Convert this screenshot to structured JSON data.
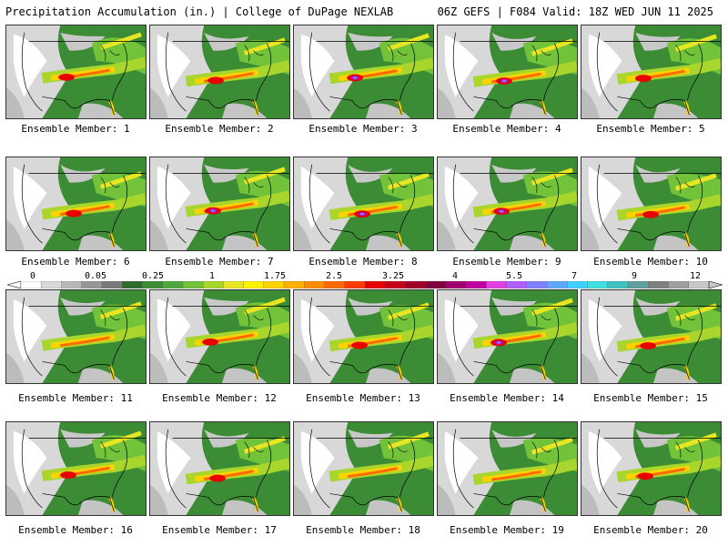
{
  "header": {
    "title": "Precipitation Accumulation (in.) | College of DuPage NEXLAB",
    "valid": "06Z GEFS | F084 Valid: 18Z WED JUN 11 2025"
  },
  "members": [
    {
      "label": "Ensemble Member: 1",
      "heavy": "medium"
    },
    {
      "label": "Ensemble Member: 2",
      "heavy": "medium"
    },
    {
      "label": "Ensemble Member: 3",
      "heavy": "high"
    },
    {
      "label": "Ensemble Member: 4",
      "heavy": "high"
    },
    {
      "label": "Ensemble Member: 5",
      "heavy": "medium"
    },
    {
      "label": "Ensemble Member: 6",
      "heavy": "medium"
    },
    {
      "label": "Ensemble Member: 7",
      "heavy": "high"
    },
    {
      "label": "Ensemble Member: 8",
      "heavy": "high"
    },
    {
      "label": "Ensemble Member: 9",
      "heavy": "high"
    },
    {
      "label": "Ensemble Member: 10",
      "heavy": "medium"
    },
    {
      "label": "Ensemble Member: 11",
      "heavy": "low"
    },
    {
      "label": "Ensemble Member: 12",
      "heavy": "medium"
    },
    {
      "label": "Ensemble Member: 13",
      "heavy": "medium"
    },
    {
      "label": "Ensemble Member: 14",
      "heavy": "high"
    },
    {
      "label": "Ensemble Member: 15",
      "heavy": "medium"
    },
    {
      "label": "Ensemble Member: 16",
      "heavy": "medium"
    },
    {
      "label": "Ensemble Member: 17",
      "heavy": "medium"
    },
    {
      "label": "Ensemble Member: 18",
      "heavy": "low"
    },
    {
      "label": "Ensemble Member: 19",
      "heavy": "low"
    },
    {
      "label": "Ensemble Member: 20",
      "heavy": "medium"
    }
  ],
  "colorbar": {
    "ticks": [
      "0",
      "0.05",
      "0.25",
      "1",
      "1.75",
      "2.5",
      "3.25",
      "4",
      "5.5",
      "7",
      "9",
      "12"
    ],
    "colors": [
      "#ffffff",
      "#d9d9d9",
      "#b8b8b8",
      "#979797",
      "#7a7a7a",
      "#2e6b2c",
      "#3b8c34",
      "#4fa83e",
      "#72c23a",
      "#a8d62c",
      "#e6e622",
      "#fff200",
      "#ffd200",
      "#ffb000",
      "#ff8c00",
      "#ff6a00",
      "#ff3c00",
      "#e80000",
      "#c4001a",
      "#a00028",
      "#800040",
      "#a0006e",
      "#c000a0",
      "#e040e0",
      "#b060ff",
      "#8080ff",
      "#60a8ff",
      "#40d0ff",
      "#40e0e0",
      "#40c0c0",
      "#60a0a0",
      "#808080",
      "#a0a0a0",
      "#c8c8c8"
    ]
  }
}
